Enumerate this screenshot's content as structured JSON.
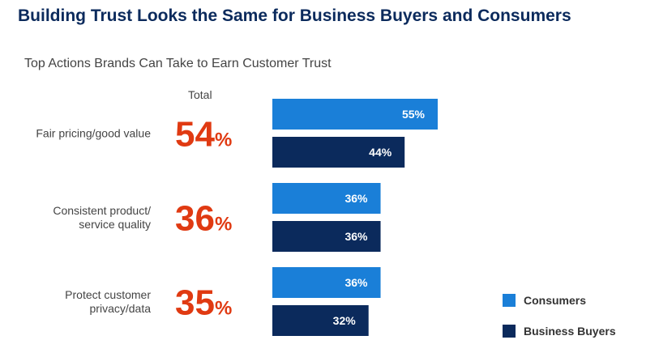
{
  "title": "Building Trust Looks the Same for Business Buyers and Consumers",
  "subtitle": "Top Actions Brands Can Take to Earn Customer Trust",
  "total_header": "Total",
  "colors": {
    "consumers": "#1a7fd8",
    "business_buyers": "#0b2a5c",
    "total": "#e03a12",
    "title": "#0b2a5c"
  },
  "chart_data": {
    "type": "bar",
    "orientation": "horizontal",
    "categories": [
      [
        "Fair pricing/good value"
      ],
      [
        "Consistent product/",
        "service quality"
      ],
      [
        "Protect customer",
        "privacy/data"
      ]
    ],
    "totals": [
      54,
      36,
      35
    ],
    "series": [
      {
        "name": "Consumers",
        "values": [
          55,
          36,
          36
        ]
      },
      {
        "name": "Business Buyers",
        "values": [
          44,
          36,
          32
        ]
      }
    ],
    "value_suffix": "%",
    "legend_position": "bottom-right"
  }
}
